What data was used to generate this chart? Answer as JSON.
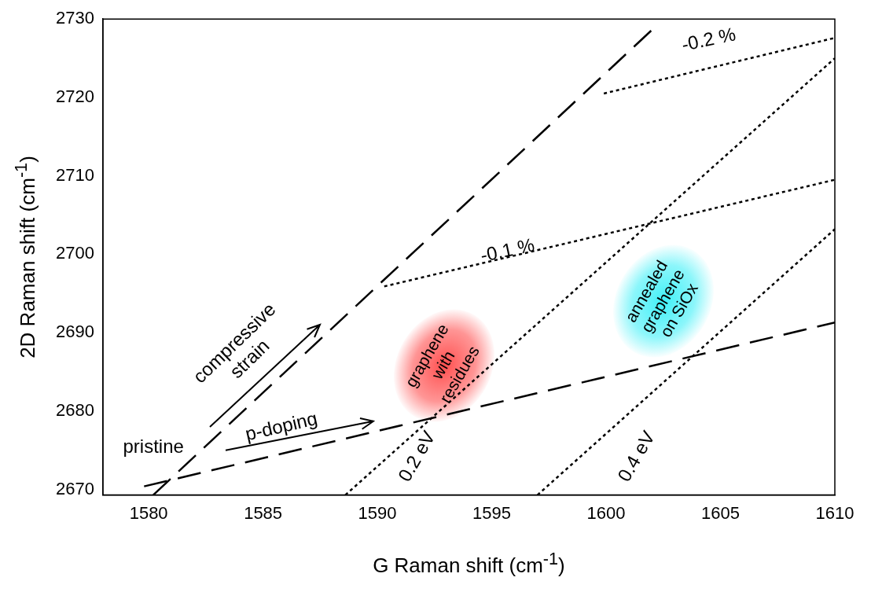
{
  "chart_data": {
    "type": "line",
    "xlabel": "G Raman shift (cm$^{-1}$)",
    "ylabel": "2D Raman shift (cm$^{-1}$)",
    "xlim": [
      1578,
      1610
    ],
    "ylim": [
      2669.3,
      2730
    ],
    "xticks": [
      1580,
      1585,
      1590,
      1595,
      1600,
      1605,
      1610
    ],
    "yticks": [
      2670,
      2680,
      2690,
      2700,
      2710,
      2720,
      2730
    ],
    "series": [
      {
        "color": "#000000",
        "line_style": "dashed",
        "x": [
          1580.2,
          1602.0
        ],
        "values": [
          2669.3,
          2728.6
        ]
      },
      {
        "color": "#000000",
        "line_style": "dashed",
        "x": [
          1579.8,
          1610
        ],
        "values": [
          2670.4,
          2691.3
        ]
      },
      {
        "color": "#000000",
        "line_style": "dotted",
        "x": [
          1590.3,
          1610
        ],
        "values": [
          2695.9,
          2709.5
        ]
      },
      {
        "color": "#000000",
        "line_style": "dotted",
        "x": [
          1599.9,
          1610
        ],
        "values": [
          2720.5,
          2727.6
        ]
      },
      {
        "color": "#000000",
        "line_style": "dotted",
        "x": [
          1588.6,
          1610
        ],
        "values": [
          2669.3,
          2725.0
        ]
      },
      {
        "color": "#000000",
        "line_style": "dotted",
        "x": [
          1597.0,
          1610
        ],
        "values": [
          2669.3,
          2703.2
        ]
      }
    ],
    "annotations": [
      "-0.2 %",
      "-0.1 %",
      "0.2 eV",
      "0.4 eV",
      "pristine",
      "compressive\nstrain",
      "p-doping",
      "graphene\nwith\nresidues",
      "annealed\ngraphene\non SiOx"
    ]
  }
}
